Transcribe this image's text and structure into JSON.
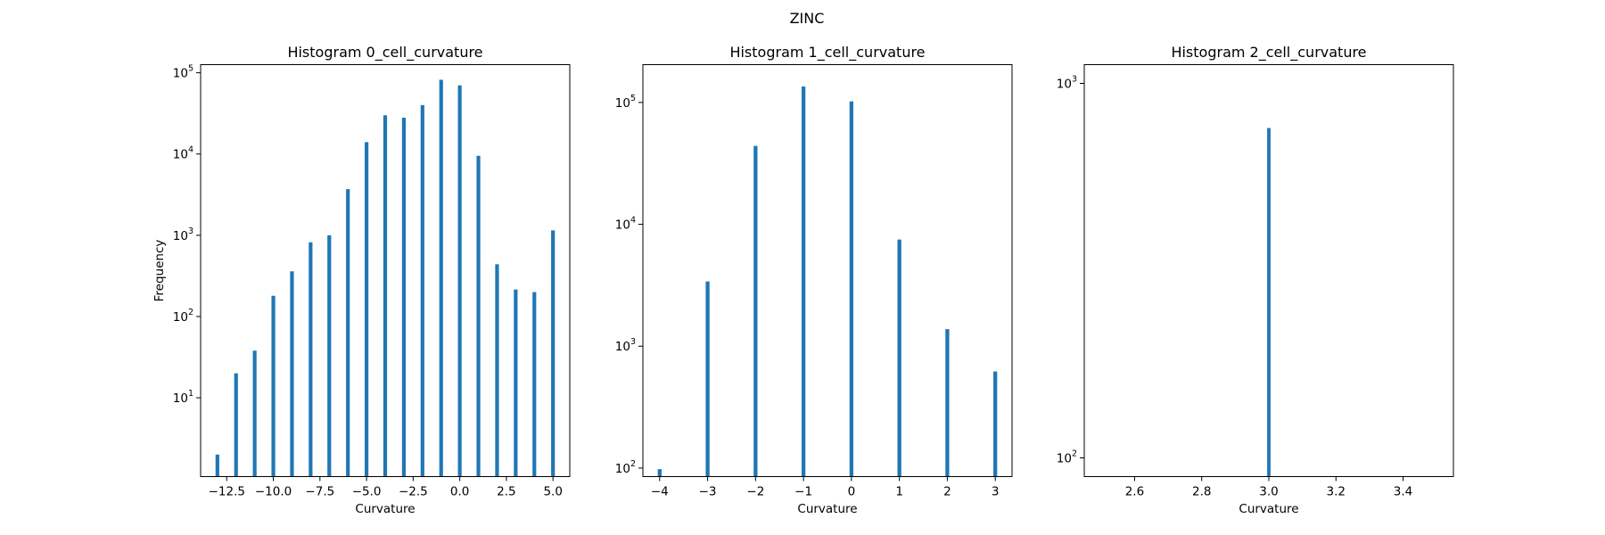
{
  "figure": {
    "suptitle": "ZINC"
  },
  "chart_data": [
    {
      "type": "bar",
      "title": "Histogram 0_cell_curvature",
      "xlabel": "Curvature",
      "ylabel": "Frequency",
      "yscale": "log",
      "xlim": [
        -13.9,
        5.9
      ],
      "ylim_log10": [
        0.03,
        5.1
      ],
      "xticks": [
        {
          "value": -12.5,
          "label": "−12.5"
        },
        {
          "value": -10.0,
          "label": "−10.0"
        },
        {
          "value": -7.5,
          "label": "−7.5"
        },
        {
          "value": -5.0,
          "label": "−5.0"
        },
        {
          "value": -2.5,
          "label": "−2.5"
        },
        {
          "value": 0.0,
          "label": "0.0"
        },
        {
          "value": 2.5,
          "label": "2.5"
        },
        {
          "value": 5.0,
          "label": "5.0"
        }
      ],
      "yticks": [
        {
          "exp": 1,
          "base": "10",
          "sup": "1"
        },
        {
          "exp": 2,
          "base": "10",
          "sup": "2"
        },
        {
          "exp": 3,
          "base": "10",
          "sup": "3"
        },
        {
          "exp": 4,
          "base": "10",
          "sup": "4"
        },
        {
          "exp": 5,
          "base": "10",
          "sup": "5"
        }
      ],
      "bar_width": 0.2,
      "bars": [
        {
          "x": -13,
          "value": 2
        },
        {
          "x": -12,
          "value": 20
        },
        {
          "x": -11,
          "value": 38
        },
        {
          "x": -10,
          "value": 180
        },
        {
          "x": -9,
          "value": 360
        },
        {
          "x": -8,
          "value": 820
        },
        {
          "x": -7,
          "value": 1000
        },
        {
          "x": -6,
          "value": 3700
        },
        {
          "x": -5,
          "value": 14000
        },
        {
          "x": -4,
          "value": 30000
        },
        {
          "x": -3,
          "value": 28000
        },
        {
          "x": -2,
          "value": 40000
        },
        {
          "x": -1,
          "value": 82000
        },
        {
          "x": 0,
          "value": 70000
        },
        {
          "x": 1,
          "value": 9500
        },
        {
          "x": 2,
          "value": 440
        },
        {
          "x": 3,
          "value": 215
        },
        {
          "x": 4,
          "value": 200
        },
        {
          "x": 5,
          "value": 1150
        }
      ]
    },
    {
      "type": "bar",
      "title": "Histogram 1_cell_curvature",
      "xlabel": "Curvature",
      "ylabel": "",
      "yscale": "log",
      "xlim": [
        -4.35,
        3.35
      ],
      "ylim_log10": [
        1.93,
        5.31
      ],
      "xticks": [
        {
          "value": -4,
          "label": "−4"
        },
        {
          "value": -3,
          "label": "−3"
        },
        {
          "value": -2,
          "label": "−2"
        },
        {
          "value": -1,
          "label": "−1"
        },
        {
          "value": 0,
          "label": "0"
        },
        {
          "value": 1,
          "label": "1"
        },
        {
          "value": 2,
          "label": "2"
        },
        {
          "value": 3,
          "label": "3"
        }
      ],
      "yticks": [
        {
          "exp": 2,
          "base": "10",
          "sup": "2"
        },
        {
          "exp": 3,
          "base": "10",
          "sup": "3"
        },
        {
          "exp": 4,
          "base": "10",
          "sup": "4"
        },
        {
          "exp": 5,
          "base": "10",
          "sup": "5"
        }
      ],
      "bar_width": 0.08,
      "bars": [
        {
          "x": -4,
          "value": 98
        },
        {
          "x": -3,
          "value": 3400
        },
        {
          "x": -2,
          "value": 44000
        },
        {
          "x": -1,
          "value": 135000
        },
        {
          "x": 0,
          "value": 102000
        },
        {
          "x": 1,
          "value": 7500
        },
        {
          "x": 2,
          "value": 1380
        },
        {
          "x": 3,
          "value": 620
        }
      ]
    },
    {
      "type": "bar",
      "title": "Histogram 2_cell_curvature",
      "xlabel": "Curvature",
      "ylabel": "",
      "yscale": "log",
      "xlim": [
        2.45,
        3.55
      ],
      "ylim_log10": [
        1.95,
        3.05
      ],
      "xticks": [
        {
          "value": 2.6,
          "label": "2.6"
        },
        {
          "value": 2.8,
          "label": "2.8"
        },
        {
          "value": 3.0,
          "label": "3.0"
        },
        {
          "value": 3.2,
          "label": "3.2"
        },
        {
          "value": 3.4,
          "label": "3.4"
        }
      ],
      "yticks": [
        {
          "exp": 2,
          "base": "10",
          "sup": "2"
        },
        {
          "exp": 3,
          "base": "10",
          "sup": "3"
        }
      ],
      "bar_width": 0.01,
      "bars": [
        {
          "x": 3.0,
          "value": 760
        }
      ]
    }
  ]
}
